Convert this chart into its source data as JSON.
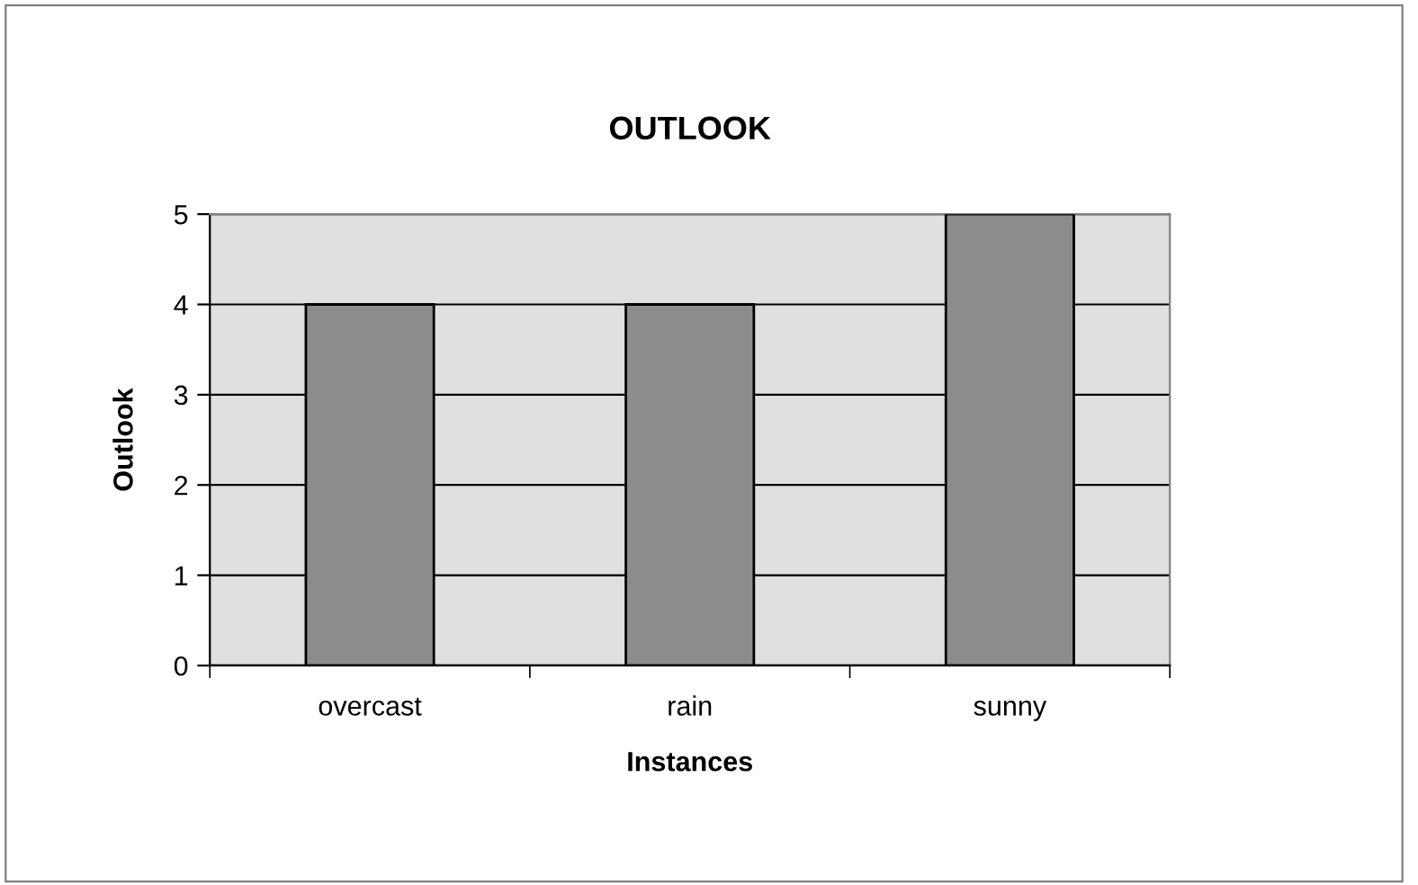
{
  "chart_data": {
    "type": "bar",
    "title": "OUTLOOK",
    "xlabel": "Instances",
    "ylabel": "Outlook",
    "categories": [
      "overcast",
      "rain",
      "sunny"
    ],
    "values": [
      4,
      4,
      5
    ],
    "color": "#8c8c8c",
    "ylim": [
      0,
      5
    ],
    "yticks": [
      0,
      1,
      2,
      3,
      4,
      5
    ],
    "grid": "y"
  }
}
